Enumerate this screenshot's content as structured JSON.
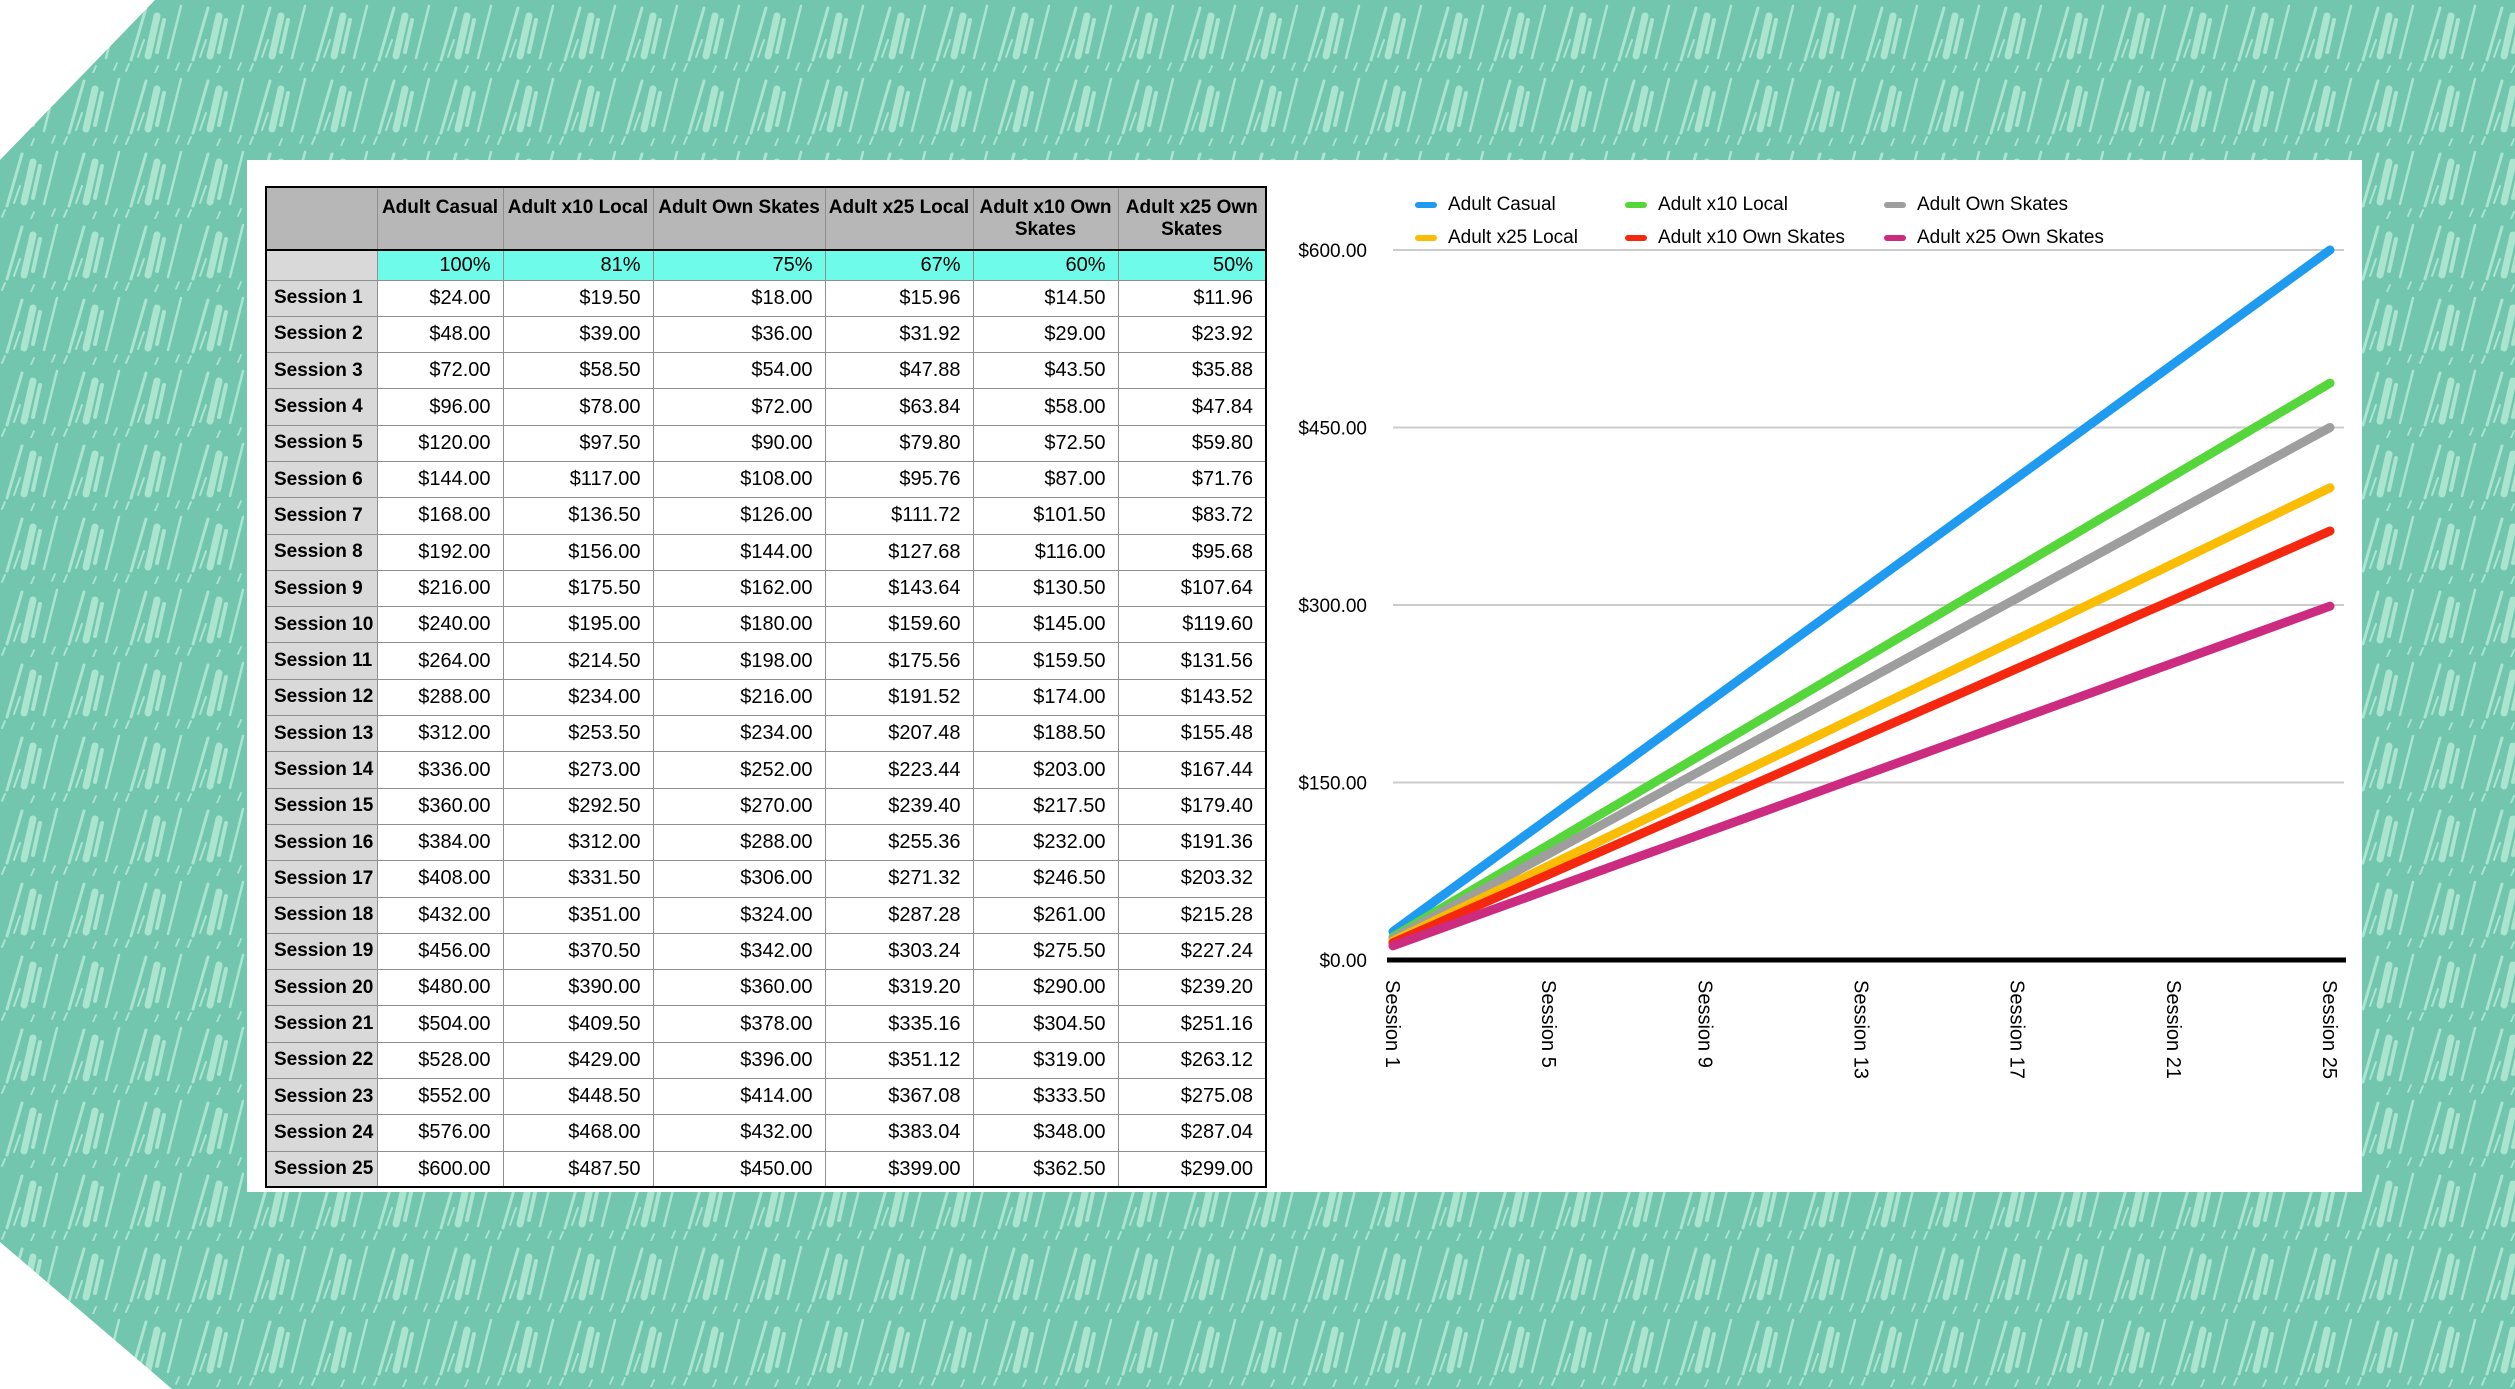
{
  "background": {
    "base_color": "#72C6AE",
    "hatch_color": "#ABE4CF"
  },
  "table": {
    "corner_label": "",
    "column_headers": [
      "Adult Casual",
      "Adult x10 Local",
      "Adult Own Skates",
      "Adult x25 Local",
      "Adult x10 Own Skates",
      "Adult x25 Own Skates"
    ],
    "discount_percents": [
      "100%",
      "81%",
      "75%",
      "67%",
      "60%",
      "50%"
    ],
    "colors": {
      "header_bg": "#B7B7B7",
      "label_bg": "#D9D9D9",
      "discount_bg": "#6FFBE9"
    },
    "rows": [
      {
        "label": "Session 1",
        "values": [
          "$24.00",
          "$19.50",
          "$18.00",
          "$15.96",
          "$14.50",
          "$11.96"
        ]
      },
      {
        "label": "Session 2",
        "values": [
          "$48.00",
          "$39.00",
          "$36.00",
          "$31.92",
          "$29.00",
          "$23.92"
        ]
      },
      {
        "label": "Session 3",
        "values": [
          "$72.00",
          "$58.50",
          "$54.00",
          "$47.88",
          "$43.50",
          "$35.88"
        ]
      },
      {
        "label": "Session 4",
        "values": [
          "$96.00",
          "$78.00",
          "$72.00",
          "$63.84",
          "$58.00",
          "$47.84"
        ]
      },
      {
        "label": "Session 5",
        "values": [
          "$120.00",
          "$97.50",
          "$90.00",
          "$79.80",
          "$72.50",
          "$59.80"
        ]
      },
      {
        "label": "Session 6",
        "values": [
          "$144.00",
          "$117.00",
          "$108.00",
          "$95.76",
          "$87.00",
          "$71.76"
        ]
      },
      {
        "label": "Session 7",
        "values": [
          "$168.00",
          "$136.50",
          "$126.00",
          "$111.72",
          "$101.50",
          "$83.72"
        ]
      },
      {
        "label": "Session 8",
        "values": [
          "$192.00",
          "$156.00",
          "$144.00",
          "$127.68",
          "$116.00",
          "$95.68"
        ]
      },
      {
        "label": "Session 9",
        "values": [
          "$216.00",
          "$175.50",
          "$162.00",
          "$143.64",
          "$130.50",
          "$107.64"
        ]
      },
      {
        "label": "Session 10",
        "values": [
          "$240.00",
          "$195.00",
          "$180.00",
          "$159.60",
          "$145.00",
          "$119.60"
        ]
      },
      {
        "label": "Session 11",
        "values": [
          "$264.00",
          "$214.50",
          "$198.00",
          "$175.56",
          "$159.50",
          "$131.56"
        ]
      },
      {
        "label": "Session 12",
        "values": [
          "$288.00",
          "$234.00",
          "$216.00",
          "$191.52",
          "$174.00",
          "$143.52"
        ]
      },
      {
        "label": "Session 13",
        "values": [
          "$312.00",
          "$253.50",
          "$234.00",
          "$207.48",
          "$188.50",
          "$155.48"
        ]
      },
      {
        "label": "Session 14",
        "values": [
          "$336.00",
          "$273.00",
          "$252.00",
          "$223.44",
          "$203.00",
          "$167.44"
        ]
      },
      {
        "label": "Session 15",
        "values": [
          "$360.00",
          "$292.50",
          "$270.00",
          "$239.40",
          "$217.50",
          "$179.40"
        ]
      },
      {
        "label": "Session 16",
        "values": [
          "$384.00",
          "$312.00",
          "$288.00",
          "$255.36",
          "$232.00",
          "$191.36"
        ]
      },
      {
        "label": "Session 17",
        "values": [
          "$408.00",
          "$331.50",
          "$306.00",
          "$271.32",
          "$246.50",
          "$203.32"
        ]
      },
      {
        "label": "Session 18",
        "values": [
          "$432.00",
          "$351.00",
          "$324.00",
          "$287.28",
          "$261.00",
          "$215.28"
        ]
      },
      {
        "label": "Session 19",
        "values": [
          "$456.00",
          "$370.50",
          "$342.00",
          "$303.24",
          "$275.50",
          "$227.24"
        ]
      },
      {
        "label": "Session 20",
        "values": [
          "$480.00",
          "$390.00",
          "$360.00",
          "$319.20",
          "$290.00",
          "$239.20"
        ]
      },
      {
        "label": "Session 21",
        "values": [
          "$504.00",
          "$409.50",
          "$378.00",
          "$335.16",
          "$304.50",
          "$251.16"
        ]
      },
      {
        "label": "Session 22",
        "values": [
          "$528.00",
          "$429.00",
          "$396.00",
          "$351.12",
          "$319.00",
          "$263.12"
        ]
      },
      {
        "label": "Session 23",
        "values": [
          "$552.00",
          "$448.50",
          "$414.00",
          "$367.08",
          "$333.50",
          "$275.08"
        ]
      },
      {
        "label": "Session 24",
        "values": [
          "$576.00",
          "$468.00",
          "$432.00",
          "$383.04",
          "$348.00",
          "$287.04"
        ]
      },
      {
        "label": "Session 25",
        "values": [
          "$600.00",
          "$487.50",
          "$450.00",
          "$399.00",
          "$362.50",
          "$299.00"
        ]
      }
    ]
  },
  "chart_data": {
    "type": "line",
    "x": [
      1,
      2,
      3,
      4,
      5,
      6,
      7,
      8,
      9,
      10,
      11,
      12,
      13,
      14,
      15,
      16,
      17,
      18,
      19,
      20,
      21,
      22,
      23,
      24,
      25
    ],
    "xlim": [
      1,
      25
    ],
    "ylim": [
      0,
      600
    ],
    "grid": "horizontal",
    "legend_position": "top",
    "y_ticks": [
      {
        "value": 0,
        "label": "$0.00"
      },
      {
        "value": 150,
        "label": "$150.00"
      },
      {
        "value": 300,
        "label": "$300.00"
      },
      {
        "value": 450,
        "label": "$450.00"
      },
      {
        "value": 600,
        "label": "$600.00"
      }
    ],
    "x_ticks": [
      {
        "session": 1,
        "label": "Session 1"
      },
      {
        "session": 5,
        "label": "Session 5"
      },
      {
        "session": 9,
        "label": "Session 9"
      },
      {
        "session": 13,
        "label": "Session 13"
      },
      {
        "session": 17,
        "label": "Session 17"
      },
      {
        "session": 21,
        "label": "Session 21"
      },
      {
        "session": 25,
        "label": "Session 25"
      }
    ],
    "series": [
      {
        "name": "Adult Casual",
        "color": "#1E9BF0",
        "values": [
          24,
          48,
          72,
          96,
          120,
          144,
          168,
          192,
          216,
          240,
          264,
          288,
          312,
          336,
          360,
          384,
          408,
          432,
          456,
          480,
          504,
          528,
          552,
          576,
          600
        ]
      },
      {
        "name": "Adult x10 Local",
        "color": "#55D63A",
        "values": [
          19.5,
          39,
          58.5,
          78,
          97.5,
          117,
          136.5,
          156,
          175.5,
          195,
          214.5,
          234,
          253.5,
          273,
          292.5,
          312,
          331.5,
          351,
          370.5,
          390,
          409.5,
          429,
          448.5,
          468,
          487.5
        ]
      },
      {
        "name": "Adult Own Skates",
        "color": "#9E9E9E",
        "values": [
          18,
          36,
          54,
          72,
          90,
          108,
          126,
          144,
          162,
          180,
          198,
          216,
          234,
          252,
          270,
          288,
          306,
          324,
          342,
          360,
          378,
          396,
          414,
          432,
          450
        ]
      },
      {
        "name": "Adult x25 Local",
        "color": "#FBBC04",
        "values": [
          15.96,
          31.92,
          47.88,
          63.84,
          79.8,
          95.76,
          111.72,
          127.68,
          143.64,
          159.6,
          175.56,
          191.52,
          207.48,
          223.44,
          239.4,
          255.36,
          271.32,
          287.28,
          303.24,
          319.2,
          335.16,
          351.12,
          367.08,
          383.04,
          399
        ]
      },
      {
        "name": "Adult x10 Own Skates",
        "color": "#F5280F",
        "values": [
          14.5,
          29,
          43.5,
          58,
          72.5,
          87,
          101.5,
          116,
          130.5,
          145,
          159.5,
          174,
          188.5,
          203,
          217.5,
          232,
          246.5,
          261,
          275.5,
          290,
          304.5,
          319,
          333.5,
          348,
          362.5
        ]
      },
      {
        "name": "Adult x25 Own Skates",
        "color": "#CC2B80",
        "values": [
          11.96,
          23.92,
          35.88,
          47.84,
          59.8,
          71.76,
          83.72,
          95.68,
          107.64,
          119.6,
          131.56,
          143.52,
          155.48,
          167.44,
          179.4,
          191.36,
          203.32,
          215.28,
          227.24,
          239.2,
          251.16,
          263.12,
          275.08,
          287.04,
          299
        ]
      }
    ]
  }
}
